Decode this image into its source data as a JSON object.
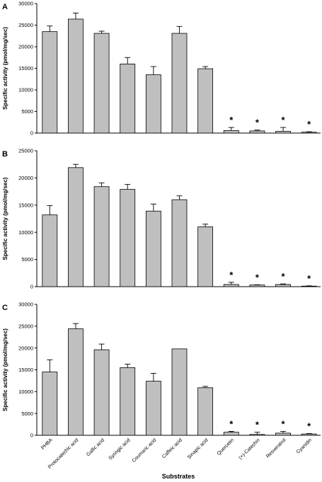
{
  "figure": {
    "xlabel": "Substrates",
    "ylabel": "Specific activity (pmol/mg/sec)",
    "categories": [
      "PHBA",
      "Protocatechic acid",
      "Gallic acid",
      "Syringic acid",
      "Coumaric acid",
      "Caffeic acid",
      "Sinapic acid",
      "Quercetin",
      "(+)-Catechin",
      "Resveratrol",
      "Cyanidin"
    ],
    "bar_color": "#bfbfbf",
    "significance_marker": "*"
  },
  "chart_data": [
    {
      "type": "bar",
      "panel_label": "A",
      "categories": [
        "PHBA",
        "Protocatechic acid",
        "Gallic acid",
        "Syringic acid",
        "Coumaric acid",
        "Caffeic acid",
        "Sinapic acid",
        "Quercetin",
        "(+)-Catechin",
        "Resveratrol",
        "Cyanidin"
      ],
      "values": [
        23500,
        26400,
        23100,
        16000,
        13500,
        23100,
        14900,
        600,
        500,
        400,
        200
      ],
      "errors": [
        1300,
        1400,
        500,
        1500,
        1900,
        1600,
        500,
        700,
        200,
        900,
        100
      ],
      "significant": [
        false,
        false,
        false,
        false,
        false,
        false,
        false,
        true,
        true,
        true,
        true
      ],
      "ylim": [
        0,
        30000
      ],
      "yticks": [
        0,
        5000,
        10000,
        15000,
        20000,
        25000,
        30000
      ],
      "ylabel": "Specific activity (pmol/mg/sec)",
      "xlabel": ""
    },
    {
      "type": "bar",
      "panel_label": "B",
      "categories": [
        "PHBA",
        "Protocatechic acid",
        "Gallic acid",
        "Syringic acid",
        "Coumaric acid",
        "Caffeic acid",
        "Sinapic acid",
        "Quercetin",
        "(+)-Catechin",
        "Resveratrol",
        "Cyanidin"
      ],
      "values": [
        13200,
        21900,
        18400,
        17900,
        13900,
        16000,
        11000,
        400,
        300,
        400,
        100
      ],
      "errors": [
        1700,
        600,
        700,
        900,
        1300,
        700,
        500,
        400,
        50,
        100,
        50
      ],
      "significant": [
        false,
        false,
        false,
        false,
        false,
        false,
        false,
        true,
        true,
        true,
        true
      ],
      "ylim": [
        0,
        25000
      ],
      "yticks": [
        0,
        5000,
        10000,
        15000,
        20000,
        25000
      ],
      "ylabel": "Specific activity (pmol/mg/sec)",
      "xlabel": ""
    },
    {
      "type": "bar",
      "panel_label": "C",
      "categories": [
        "PHBA",
        "Protocatechic acid",
        "Gallic acid",
        "Syringic acid",
        "Coumaric acid",
        "Caffeic acid",
        "Sinapic acid",
        "Quercetin",
        "(+)-Catechin",
        "Resveratrol",
        "Cyanidin"
      ],
      "values": [
        14500,
        24400,
        19600,
        15500,
        12400,
        19800,
        10900,
        700,
        200,
        500,
        300
      ],
      "errors": [
        2800,
        1200,
        1300,
        800,
        1800,
        0,
        300,
        200,
        500,
        400,
        100
      ],
      "significant": [
        false,
        false,
        false,
        false,
        false,
        false,
        false,
        true,
        true,
        true,
        true
      ],
      "ylim": [
        0,
        30000
      ],
      "yticks": [
        0,
        5000,
        10000,
        15000,
        20000,
        25000,
        30000
      ],
      "ylabel": "Specific activity (pmol/mg/sec)",
      "xlabel": "Substrates"
    }
  ]
}
